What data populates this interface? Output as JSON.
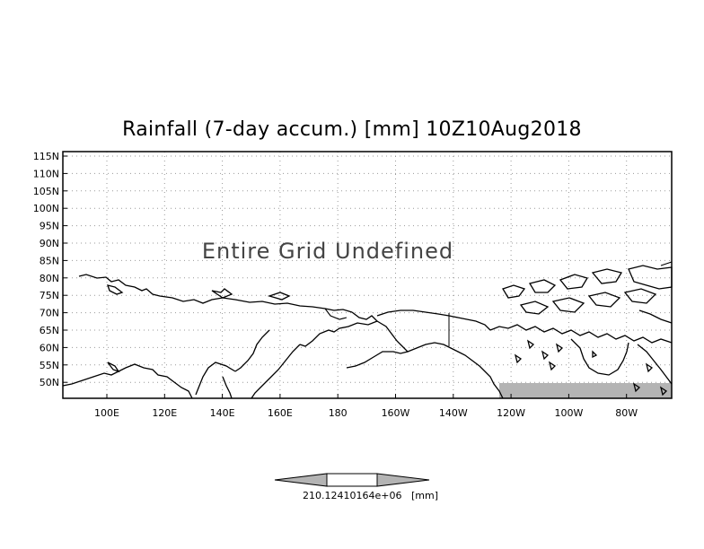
{
  "title": "Rainfall (7-day accum.) [mm] 10Z10Aug2018",
  "message": "Entire Grid Undefined",
  "lat_labels": [
    "115N",
    "110N",
    "105N",
    "100N",
    "95N",
    "90N",
    "85N",
    "80N",
    "75N",
    "70N",
    "65N",
    "60N",
    "55N",
    "50N"
  ],
  "lon_labels": [
    "100E",
    "120E",
    "140E",
    "160E",
    "180",
    "160W",
    "140W",
    "120W",
    "100W",
    "80W"
  ],
  "colorbar": {
    "value_label": "210.1241016 4e+06",
    "value_label_raw": "210.12410164e+06",
    "unit_label": "[mm]"
  },
  "colors": {
    "frame": "#000000",
    "grid": "#999999",
    "shade": "#b4b4b4",
    "colorbar_fill": "#b4b4b4"
  }
}
